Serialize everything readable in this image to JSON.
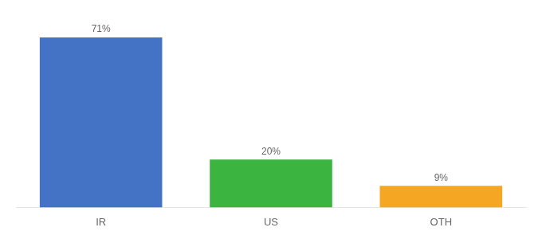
{
  "chart_data": {
    "type": "bar",
    "categories": [
      "IR",
      "US",
      "OTH"
    ],
    "values": [
      71,
      20,
      9
    ],
    "value_labels": [
      "71%",
      "20%",
      "9%"
    ],
    "data_labels": true,
    "colors": [
      "#4472c4",
      "#3cb540",
      "#f5a623"
    ],
    "ylim": [
      0,
      80
    ],
    "tick_labels": "x",
    "grid": false
  }
}
